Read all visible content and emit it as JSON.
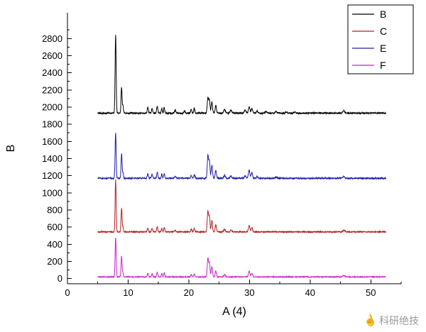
{
  "watermark": {
    "text": "科研绝技",
    "icon": "pointing-hand-icon"
  },
  "chart_data": {
    "type": "line",
    "title": "",
    "xlabel": "A (4)",
    "ylabel": "B",
    "xlim": [
      0,
      55
    ],
    "ylim": [
      -60,
      3100
    ],
    "x_ticks": [
      0,
      10,
      20,
      30,
      40,
      50
    ],
    "x_minor_ticks": [
      5,
      15,
      25,
      35,
      45,
      55
    ],
    "y_ticks": [
      0,
      200,
      400,
      600,
      800,
      1000,
      1200,
      1400,
      1600,
      1800,
      2000,
      2200,
      2400,
      2600,
      2800
    ],
    "y_minor_ticks": [
      100,
      300,
      500,
      700,
      900,
      1100,
      1300,
      1500,
      1700,
      1900,
      2100,
      2300,
      2500,
      2700,
      2900
    ],
    "x_range": [
      5,
      52.5
    ],
    "grid": false,
    "legend": {
      "position": "top-right",
      "entries": [
        "B",
        "C",
        "E",
        "F"
      ]
    },
    "series": [
      {
        "name": "B",
        "color": "#000000",
        "baseline": 1930,
        "noise": 8,
        "peaks": [
          [
            7.94,
            910,
            0.2
          ],
          [
            8.92,
            300,
            0.2
          ],
          [
            9.15,
            80,
            0.18
          ],
          [
            13.25,
            65,
            0.22
          ],
          [
            13.95,
            55,
            0.22
          ],
          [
            14.8,
            85,
            0.22
          ],
          [
            15.55,
            55,
            0.2
          ],
          [
            15.95,
            65,
            0.2
          ],
          [
            17.75,
            35,
            0.25
          ],
          [
            19.3,
            25,
            0.25
          ],
          [
            20.4,
            45,
            0.22
          ],
          [
            20.9,
            55,
            0.22
          ],
          [
            23.15,
            185,
            0.25
          ],
          [
            23.4,
            150,
            0.22
          ],
          [
            23.8,
            130,
            0.25
          ],
          [
            24.45,
            90,
            0.25
          ],
          [
            25.9,
            45,
            0.3
          ],
          [
            26.95,
            35,
            0.3
          ],
          [
            29.3,
            35,
            0.3
          ],
          [
            29.95,
            75,
            0.28
          ],
          [
            30.4,
            55,
            0.28
          ],
          [
            31.25,
            25,
            0.3
          ],
          [
            32.75,
            18,
            0.3
          ],
          [
            34.4,
            18,
            0.3
          ],
          [
            36.05,
            15,
            0.3
          ],
          [
            37.5,
            12,
            0.3
          ],
          [
            45.55,
            28,
            0.4
          ]
        ]
      },
      {
        "name": "C",
        "color": "#b22222",
        "baseline": 545,
        "noise": 6,
        "peaks": [
          [
            7.94,
            605,
            0.2
          ],
          [
            8.92,
            275,
            0.2
          ],
          [
            9.15,
            55,
            0.18
          ],
          [
            13.25,
            45,
            0.22
          ],
          [
            13.95,
            40,
            0.22
          ],
          [
            14.8,
            60,
            0.22
          ],
          [
            15.55,
            40,
            0.2
          ],
          [
            15.95,
            50,
            0.2
          ],
          [
            17.75,
            20,
            0.25
          ],
          [
            20.4,
            30,
            0.22
          ],
          [
            20.9,
            40,
            0.22
          ],
          [
            23.15,
            245,
            0.25
          ],
          [
            23.4,
            180,
            0.22
          ],
          [
            23.8,
            130,
            0.25
          ],
          [
            24.45,
            80,
            0.25
          ],
          [
            25.9,
            30,
            0.3
          ],
          [
            26.95,
            20,
            0.3
          ],
          [
            29.95,
            75,
            0.28
          ],
          [
            30.4,
            50,
            0.28
          ],
          [
            45.55,
            18,
            0.4
          ]
        ]
      },
      {
        "name": "E",
        "color": "#2020aa",
        "baseline": 1170,
        "noise": 8,
        "peaks": [
          [
            7.94,
            530,
            0.2
          ],
          [
            8.92,
            285,
            0.2
          ],
          [
            9.15,
            60,
            0.18
          ],
          [
            13.25,
            55,
            0.22
          ],
          [
            13.95,
            45,
            0.22
          ],
          [
            14.8,
            70,
            0.22
          ],
          [
            15.55,
            45,
            0.2
          ],
          [
            15.95,
            55,
            0.2
          ],
          [
            17.75,
            25,
            0.25
          ],
          [
            20.4,
            35,
            0.22
          ],
          [
            20.9,
            45,
            0.22
          ],
          [
            23.15,
            270,
            0.25
          ],
          [
            23.4,
            200,
            0.22
          ],
          [
            23.8,
            150,
            0.25
          ],
          [
            24.45,
            90,
            0.25
          ],
          [
            25.9,
            35,
            0.3
          ],
          [
            26.95,
            25,
            0.3
          ],
          [
            29.3,
            30,
            0.3
          ],
          [
            29.95,
            95,
            0.28
          ],
          [
            30.4,
            65,
            0.28
          ],
          [
            31.25,
            20,
            0.3
          ],
          [
            34.4,
            15,
            0.3
          ],
          [
            45.55,
            20,
            0.4
          ]
        ]
      },
      {
        "name": "F",
        "color": "#cc22cc",
        "baseline": 20,
        "noise": 5,
        "peaks": [
          [
            7.94,
            460,
            0.2
          ],
          [
            8.92,
            240,
            0.2
          ],
          [
            9.15,
            45,
            0.18
          ],
          [
            13.25,
            40,
            0.22
          ],
          [
            13.95,
            35,
            0.22
          ],
          [
            14.8,
            55,
            0.22
          ],
          [
            15.55,
            35,
            0.2
          ],
          [
            15.95,
            45,
            0.2
          ],
          [
            20.4,
            25,
            0.22
          ],
          [
            20.9,
            35,
            0.22
          ],
          [
            23.15,
            220,
            0.25
          ],
          [
            23.4,
            160,
            0.22
          ],
          [
            23.8,
            120,
            0.25
          ],
          [
            24.45,
            70,
            0.25
          ],
          [
            25.9,
            25,
            0.3
          ],
          [
            29.95,
            70,
            0.28
          ],
          [
            30.4,
            45,
            0.28
          ],
          [
            45.55,
            15,
            0.4
          ]
        ]
      }
    ]
  }
}
